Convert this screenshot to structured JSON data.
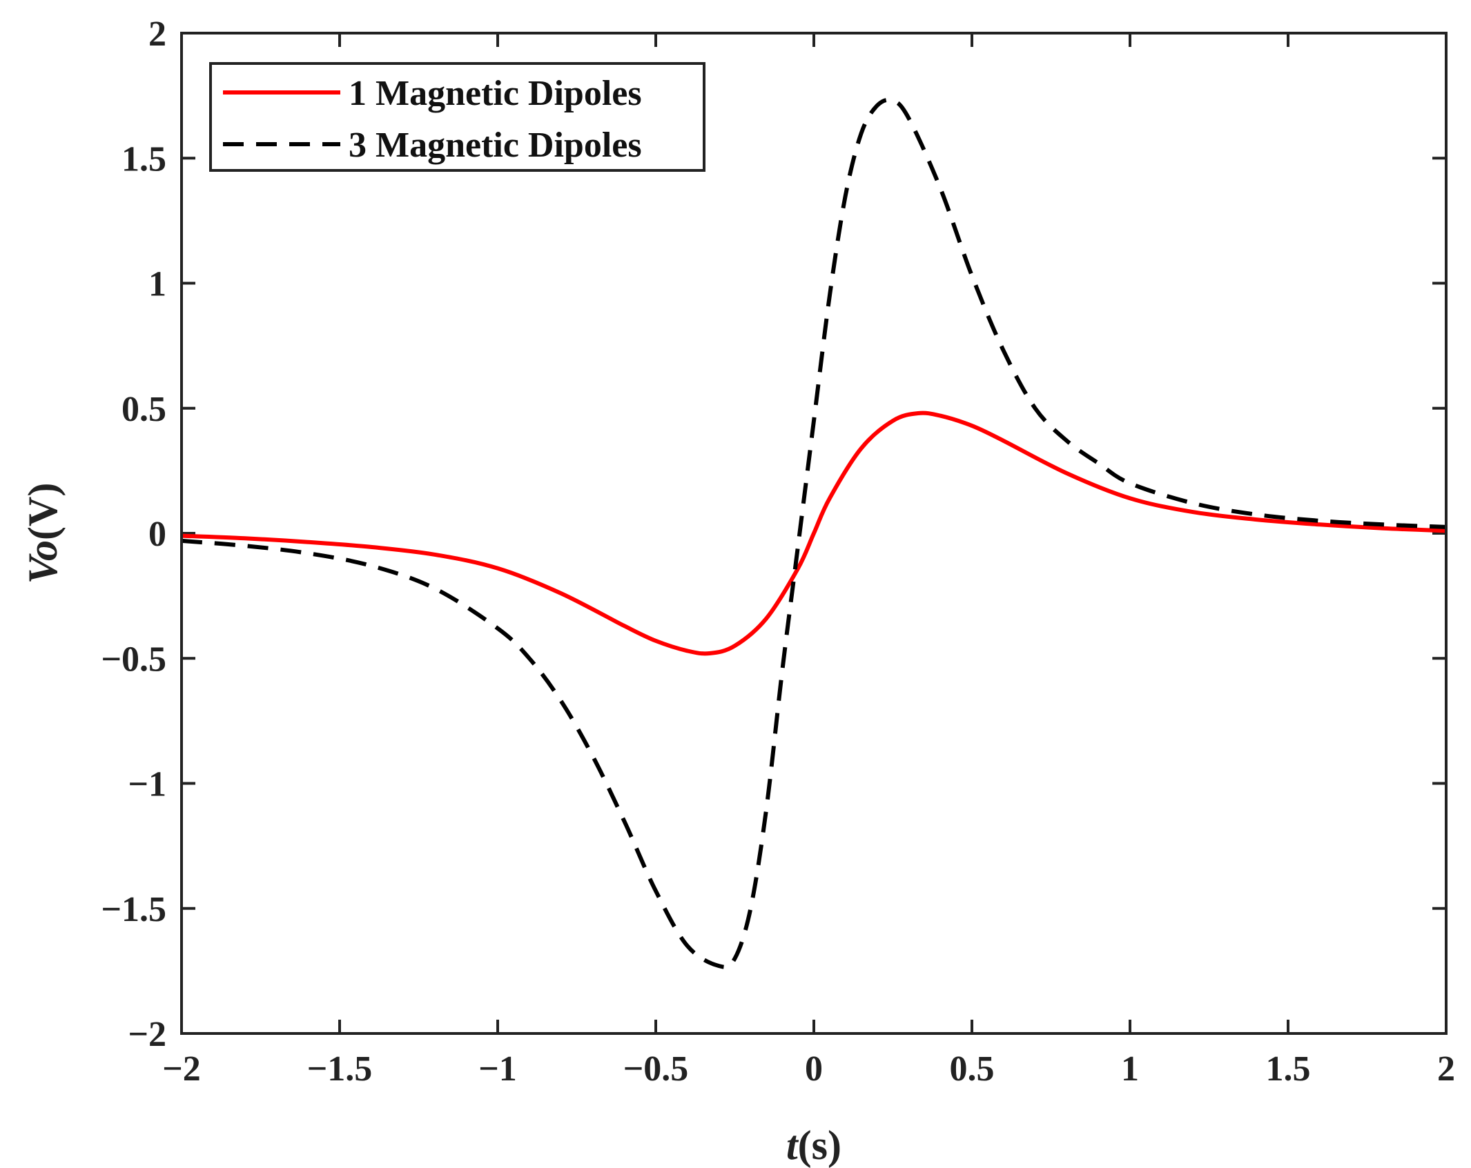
{
  "chart_data": {
    "type": "line",
    "title": "",
    "xlabel": {
      "var": "t",
      "unit": "(s)"
    },
    "ylabel": {
      "var": "Vo",
      "unit": "(V)"
    },
    "xlim": [
      -2,
      2
    ],
    "ylim": [
      -2,
      2
    ],
    "grid": false,
    "legend_position": "top-left",
    "x_ticks": [
      -2,
      -1.5,
      -1,
      -0.5,
      0,
      0.5,
      1,
      1.5,
      2
    ],
    "x_tick_labels": [
      "−2",
      "−1.5",
      "−1",
      "−0.5",
      "0",
      "0.5",
      "1",
      "1.5",
      "2"
    ],
    "y_ticks": [
      -2,
      -1.5,
      -1,
      -0.5,
      0,
      0.5,
      1,
      1.5,
      2
    ],
    "y_tick_labels": [
      "−2",
      "−1.5",
      "−1",
      "−0.5",
      "0",
      "0.5",
      "1",
      "1.5",
      "2"
    ],
    "series": [
      {
        "name": "1 Magnetic Dipoles",
        "color": "#ff0000",
        "style": "solid",
        "x": [
          -2,
          -1.8,
          -1.6,
          -1.4,
          -1.2,
          -1.0,
          -0.8,
          -0.6,
          -0.5,
          -0.4,
          -0.33,
          -0.25,
          -0.15,
          -0.05,
          0,
          0.05,
          0.15,
          0.25,
          0.33,
          0.4,
          0.5,
          0.6,
          0.8,
          1.0,
          1.2,
          1.4,
          1.6,
          1.8,
          2.0
        ],
        "y": [
          -0.01,
          -0.02,
          -0.035,
          -0.055,
          -0.085,
          -0.14,
          -0.24,
          -0.37,
          -0.43,
          -0.47,
          -0.48,
          -0.45,
          -0.34,
          -0.14,
          0,
          0.14,
          0.34,
          0.45,
          0.48,
          0.47,
          0.43,
          0.37,
          0.24,
          0.14,
          0.085,
          0.055,
          0.035,
          0.02,
          0.01
        ]
      },
      {
        "name": "3 Magnetic Dipoles",
        "color": "#000000",
        "style": "dashed",
        "x": [
          -2,
          -1.8,
          -1.6,
          -1.4,
          -1.2,
          -1.0,
          -0.9,
          -0.8,
          -0.7,
          -0.6,
          -0.5,
          -0.4,
          -0.3,
          -0.25,
          -0.2,
          -0.15,
          -0.1,
          -0.05,
          0,
          0.05,
          0.1,
          0.15,
          0.2,
          0.25,
          0.3,
          0.4,
          0.5,
          0.6,
          0.7,
          0.8,
          0.9,
          1.0,
          1.2,
          1.4,
          1.6,
          1.8,
          2.0
        ],
        "y": [
          -0.03,
          -0.05,
          -0.08,
          -0.13,
          -0.22,
          -0.38,
          -0.5,
          -0.67,
          -0.89,
          -1.15,
          -1.43,
          -1.65,
          -1.73,
          -1.7,
          -1.5,
          -1.1,
          -0.55,
          -0.05,
          0.45,
          0.95,
          1.35,
          1.6,
          1.71,
          1.73,
          1.66,
          1.38,
          1.03,
          0.73,
          0.5,
          0.37,
          0.28,
          0.2,
          0.12,
          0.075,
          0.05,
          0.035,
          0.025
        ]
      }
    ]
  }
}
